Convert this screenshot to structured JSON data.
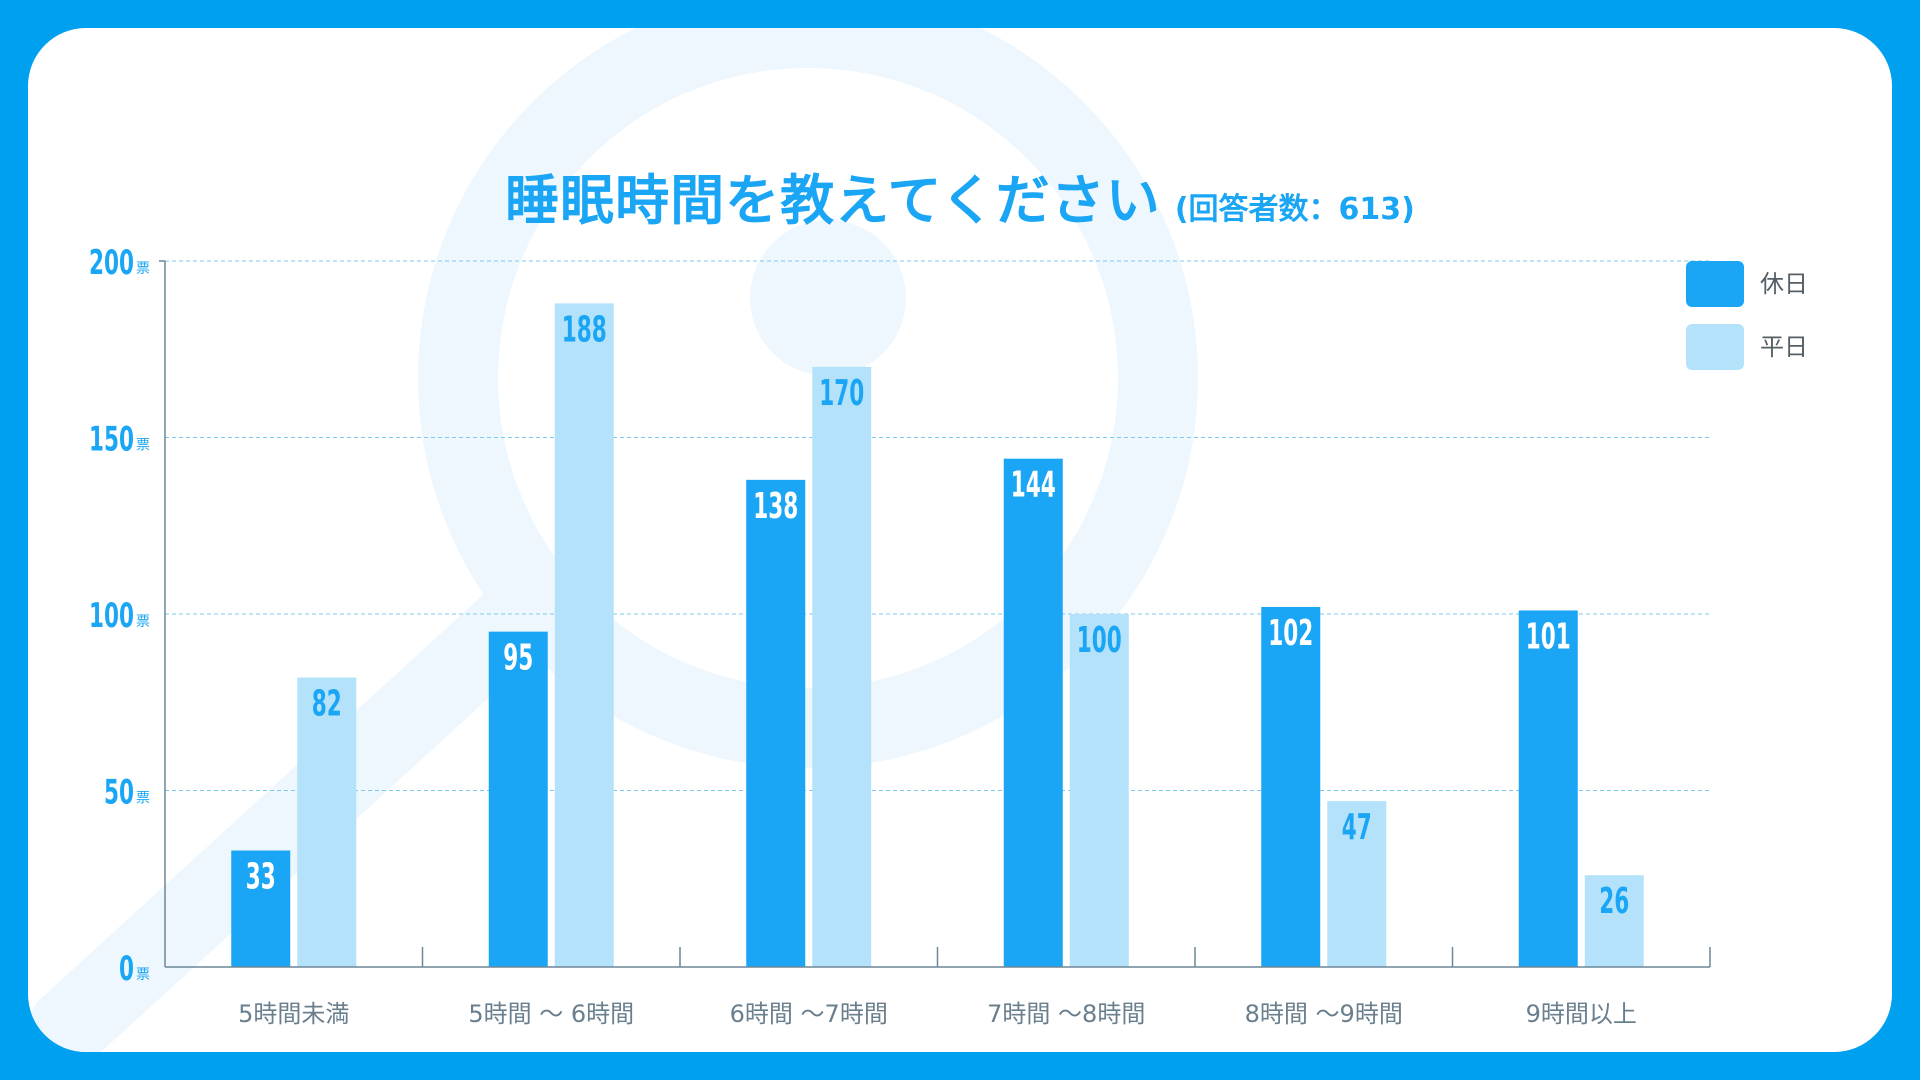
{
  "title": "睡眠時間を教えてください",
  "subtitle": "(回答者数：613)",
  "y_unit": "票",
  "colors": {
    "holiday": "#1aa6f5",
    "weekday": "#b5e2fb",
    "frame": "#00a0f0",
    "text": "#1aa6f5"
  },
  "chart_data": {
    "type": "bar",
    "title": "睡眠時間を教えてください",
    "categories": [
      "5時間未満",
      "5時間 〜 6時間",
      "6時間 〜7時間",
      "7時間 〜8時間",
      "8時間 〜9時間",
      "9時間以上"
    ],
    "series": [
      {
        "name": "休日",
        "values": [
          33,
          95,
          138,
          144,
          102,
          101
        ],
        "color": "#1aa6f5",
        "label_color": "#ffffff"
      },
      {
        "name": "平日",
        "values": [
          82,
          188,
          170,
          100,
          47,
          26
        ],
        "color": "#b5e2fb",
        "label_color": "#1aa6f5"
      }
    ],
    "ylim": [
      0,
      200
    ],
    "yticks": [
      "0",
      "50",
      "100",
      "150",
      "200"
    ],
    "grid": true,
    "legend": "top-right"
  }
}
